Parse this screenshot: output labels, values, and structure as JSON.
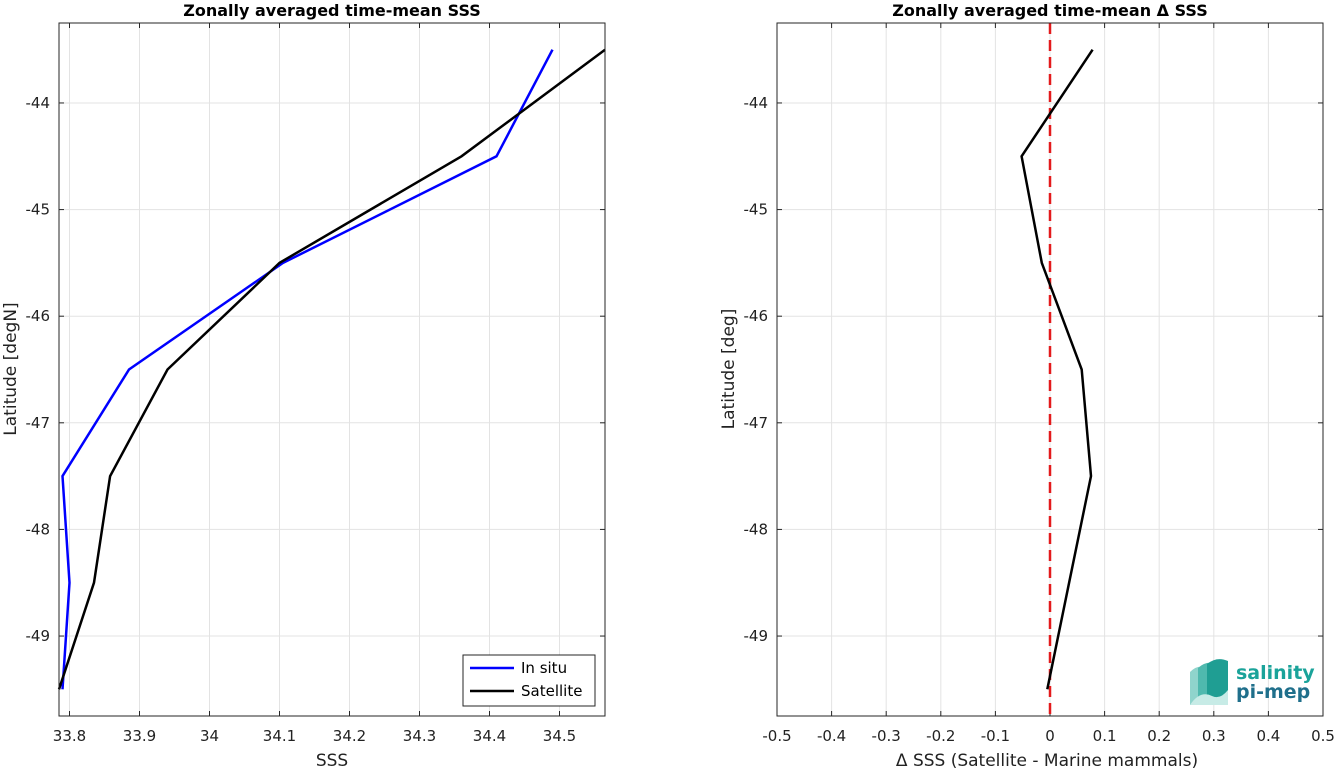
{
  "chart_data": [
    {
      "type": "line",
      "title": "Zonally averaged time-mean SSS",
      "xlabel": "SSS",
      "ylabel": "Latitude [degN]",
      "xlim": [
        33.785,
        34.565
      ],
      "ylim": [
        -49.75,
        -43.25
      ],
      "xticks": [
        33.8,
        33.9,
        34,
        34.1,
        34.2,
        34.3,
        34.4,
        34.5
      ],
      "xtick_labels": [
        "33.8",
        "33.9",
        "34",
        "34.1",
        "34.2",
        "34.3",
        "34.4",
        "34.5"
      ],
      "yticks": [
        -49,
        -48,
        -47,
        -46,
        -45,
        -44
      ],
      "ytick_labels": [
        "-49",
        "-48",
        "-47",
        "-46",
        "-45",
        "-44"
      ],
      "grid": true,
      "legend_position": "bottom-right",
      "series": [
        {
          "name": "In situ",
          "color": "#0000ff",
          "x": [
            33.79,
            33.8,
            33.79,
            33.885,
            34.105,
            34.41,
            34.49
          ],
          "y": [
            -49.5,
            -48.5,
            -47.5,
            -46.5,
            -45.5,
            -44.5,
            -43.5
          ]
        },
        {
          "name": "Satellite",
          "color": "#000000",
          "x": [
            33.785,
            33.835,
            33.858,
            33.94,
            34.1,
            34.36,
            34.565
          ],
          "y": [
            -49.5,
            -48.5,
            -47.5,
            -46.5,
            -45.5,
            -44.5,
            -43.5
          ]
        }
      ]
    },
    {
      "type": "line",
      "title": "Zonally averaged time-mean Δ SSS",
      "xlabel": "Δ SSS (Satellite - Marine mammals)",
      "ylabel": "Latitude [deg]",
      "xlim": [
        -0.5,
        0.5
      ],
      "ylim": [
        -49.75,
        -43.25
      ],
      "xticks": [
        -0.5,
        -0.4,
        -0.3,
        -0.2,
        -0.1,
        0,
        0.1,
        0.2,
        0.3,
        0.4,
        0.5
      ],
      "xtick_labels": [
        "-0.5",
        "-0.4",
        "-0.3",
        "-0.2",
        "-0.1",
        "0",
        "0.1",
        "0.2",
        "0.3",
        "0.4",
        "0.5"
      ],
      "yticks": [
        -49,
        -48,
        -47,
        -46,
        -45,
        -44
      ],
      "ytick_labels": [
        "-49",
        "-48",
        "-47",
        "-46",
        "-45",
        "-44"
      ],
      "grid": true,
      "reference_line": {
        "x": 0,
        "color": "#e31a1c",
        "style": "dashed"
      },
      "series": [
        {
          "color": "#000000",
          "x": [
            -0.005,
            0.035,
            0.075,
            0.058,
            -0.015,
            -0.052,
            0.078
          ],
          "y": [
            -49.5,
            -48.5,
            -47.5,
            -46.5,
            -45.5,
            -44.5,
            -43.5
          ]
        }
      ]
    }
  ],
  "logo": {
    "line1": "salinity",
    "line2": "pi-mep",
    "color1": "#1aa39a",
    "color2": "#1f6f8b"
  }
}
